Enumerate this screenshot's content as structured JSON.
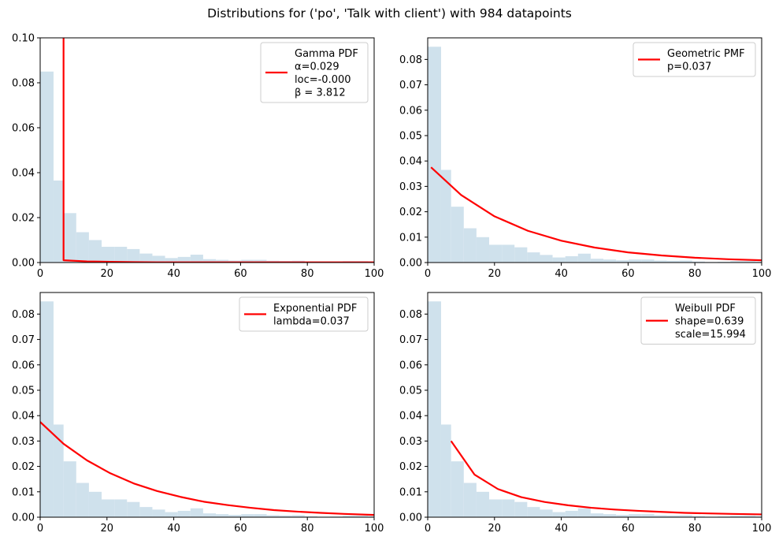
{
  "figure": {
    "title": "Distributions for ('po', 'Talk with client') with 984 datapoints"
  },
  "chart_data": [
    {
      "type": "bar",
      "panel": "top-left",
      "xlim": [
        0,
        100
      ],
      "ylim": [
        0,
        0.1
      ],
      "xticks": [
        "0",
        "20",
        "40",
        "60",
        "80",
        "100"
      ],
      "yticks": [
        "0.00",
        "0.02",
        "0.04",
        "0.06",
        "0.08",
        "0.10"
      ],
      "hist_color": "#cfe1ec",
      "hist": {
        "bin_edges": [
          0,
          4,
          7,
          10.8,
          14.6,
          18.4,
          22.2,
          26,
          29.8,
          33.6,
          37.4,
          41.2,
          45,
          48.8,
          52.6,
          56.4,
          60.2,
          64,
          67.8,
          71.6,
          75.4,
          79.2,
          83,
          86.8,
          90.6,
          94.4,
          98.2,
          100
        ],
        "values": [
          0.085,
          0.0365,
          0.022,
          0.0135,
          0.01,
          0.007,
          0.007,
          0.006,
          0.004,
          0.003,
          0.002,
          0.0025,
          0.0035,
          0.0015,
          0.0012,
          0.0009,
          0.0012,
          0.0012,
          0.0008,
          0.0007,
          0.0008,
          0.0004,
          0.0002,
          0.0003,
          0.0006,
          0.0006,
          0.0004
        ]
      },
      "series": [
        {
          "name": "fit",
          "color": "#ff0000",
          "x": [
            7,
            7,
            7,
            14,
            21,
            28,
            35,
            42,
            49,
            56,
            63,
            70,
            77,
            84,
            91,
            98,
            100
          ],
          "y": [
            0.1,
            0.101,
            0.001,
            0.0005,
            0.0003,
            0.0002,
            0.0001,
            0.0001,
            0.0001,
            0.0001,
            0.0001,
            0.0001,
            0.0001,
            0.0001,
            0.0001,
            0.0001,
            0.0001
          ]
        }
      ],
      "legend": {
        "placement": "top-right",
        "lines": [
          "Gamma PDF",
          "α=0.029",
          "loc=-0.000",
          "β = 3.812"
        ]
      }
    },
    {
      "type": "bar",
      "panel": "top-right",
      "xlim": [
        0,
        100
      ],
      "ylim": [
        0,
        0.0885
      ],
      "xticks": [
        "0",
        "20",
        "40",
        "60",
        "80",
        "100"
      ],
      "yticks": [
        "0.00",
        "0.01",
        "0.02",
        "0.03",
        "0.04",
        "0.05",
        "0.06",
        "0.07",
        "0.08"
      ],
      "hist_color": "#cfe1ec",
      "hist": {
        "bin_edges": [
          0,
          4,
          7,
          10.8,
          14.6,
          18.4,
          22.2,
          26,
          29.8,
          33.6,
          37.4,
          41.2,
          45,
          48.8,
          52.6,
          56.4,
          60.2,
          64,
          67.8,
          71.6,
          75.4,
          79.2,
          83,
          86.8,
          90.6,
          94.4,
          98.2,
          100
        ],
        "values": [
          0.085,
          0.0365,
          0.022,
          0.0135,
          0.01,
          0.007,
          0.007,
          0.006,
          0.004,
          0.003,
          0.002,
          0.0025,
          0.0035,
          0.0015,
          0.0012,
          0.0009,
          0.0012,
          0.0012,
          0.0008,
          0.0007,
          0.0008,
          0.0004,
          0.0002,
          0.0003,
          0.0006,
          0.0006,
          0.0004
        ]
      },
      "series": [
        {
          "name": "fit",
          "color": "#ff0000",
          "x": [
            1,
            10,
            20,
            30,
            40,
            50,
            60,
            70,
            80,
            90,
            100
          ],
          "y": [
            0.0375,
            0.0266,
            0.0182,
            0.0125,
            0.0086,
            0.0059,
            0.004,
            0.0028,
            0.0019,
            0.0013,
            0.0009
          ]
        }
      ],
      "legend": {
        "placement": "top-right",
        "lines": [
          "Geometric PMF",
          "p=0.037"
        ]
      }
    },
    {
      "type": "bar",
      "panel": "bottom-left",
      "xlim": [
        0,
        100
      ],
      "ylim": [
        0,
        0.0885
      ],
      "xticks": [
        "0",
        "20",
        "40",
        "60",
        "80",
        "100"
      ],
      "yticks": [
        "0.00",
        "0.01",
        "0.02",
        "0.03",
        "0.04",
        "0.05",
        "0.06",
        "0.07",
        "0.08"
      ],
      "hist_color": "#cfe1ec",
      "hist": {
        "bin_edges": [
          0,
          4,
          7,
          10.8,
          14.6,
          18.4,
          22.2,
          26,
          29.8,
          33.6,
          37.4,
          41.2,
          45,
          48.8,
          52.6,
          56.4,
          60.2,
          64,
          67.8,
          71.6,
          75.4,
          79.2,
          83,
          86.8,
          90.6,
          94.4,
          98.2,
          100
        ],
        "values": [
          0.085,
          0.0365,
          0.022,
          0.0135,
          0.01,
          0.007,
          0.007,
          0.006,
          0.004,
          0.003,
          0.002,
          0.0025,
          0.0035,
          0.0015,
          0.0012,
          0.0009,
          0.0012,
          0.0012,
          0.0008,
          0.0007,
          0.0008,
          0.0004,
          0.0002,
          0.0003,
          0.0006,
          0.0006,
          0.0004
        ]
      },
      "series": [
        {
          "name": "fit",
          "color": "#ff0000",
          "x": [
            0,
            7,
            14,
            21,
            28,
            35,
            42,
            49,
            56,
            63,
            70,
            77,
            84,
            91,
            100
          ],
          "y": [
            0.0375,
            0.0289,
            0.0224,
            0.0173,
            0.0133,
            0.0103,
            0.008,
            0.0061,
            0.0048,
            0.0037,
            0.0028,
            0.0022,
            0.0017,
            0.0013,
            0.0009
          ]
        }
      ],
      "legend": {
        "placement": "top-right",
        "lines": [
          "Exponential PDF",
          "lambda=0.037"
        ]
      }
    },
    {
      "type": "bar",
      "panel": "bottom-right",
      "xlim": [
        0,
        100
      ],
      "ylim": [
        0,
        0.0885
      ],
      "xticks": [
        "0",
        "20",
        "40",
        "60",
        "80",
        "100"
      ],
      "yticks": [
        "0.00",
        "0.01",
        "0.02",
        "0.03",
        "0.04",
        "0.05",
        "0.06",
        "0.07",
        "0.08"
      ],
      "hist_color": "#cfe1ec",
      "hist": {
        "bin_edges": [
          0,
          4,
          7,
          10.8,
          14.6,
          18.4,
          22.2,
          26,
          29.8,
          33.6,
          37.4,
          41.2,
          45,
          48.8,
          52.6,
          56.4,
          60.2,
          64,
          67.8,
          71.6,
          75.4,
          79.2,
          83,
          86.8,
          90.6,
          94.4,
          98.2,
          100
        ],
        "values": [
          0.085,
          0.0365,
          0.022,
          0.0135,
          0.01,
          0.007,
          0.007,
          0.006,
          0.004,
          0.003,
          0.002,
          0.0025,
          0.0035,
          0.0015,
          0.0012,
          0.0009,
          0.0012,
          0.0012,
          0.0008,
          0.0007,
          0.0008,
          0.0004,
          0.0002,
          0.0003,
          0.0006,
          0.0006,
          0.0004
        ]
      },
      "series": [
        {
          "name": "fit",
          "color": "#ff0000",
          "x": [
            7,
            14,
            21,
            28,
            35,
            42,
            49,
            56,
            63,
            70,
            77,
            84,
            91,
            100
          ],
          "y": [
            0.03,
            0.0168,
            0.0111,
            0.0079,
            0.006,
            0.0047,
            0.0037,
            0.003,
            0.0025,
            0.0021,
            0.0017,
            0.0015,
            0.0013,
            0.0011
          ]
        }
      ],
      "legend": {
        "placement": "top-right",
        "lines": [
          "Weibull PDF",
          "shape=0.639",
          "scale=15.994"
        ]
      }
    }
  ]
}
